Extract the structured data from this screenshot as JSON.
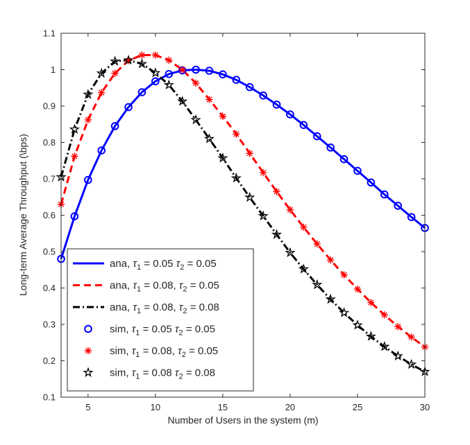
{
  "chart_data": {
    "type": "line",
    "xlabel": "Number of Users in the system (m)",
    "ylabel": "Long-term Average Throughput (\\bps)",
    "xlim": [
      3,
      30
    ],
    "ylim": [
      0.1,
      1.1
    ],
    "xticks": [
      5,
      10,
      15,
      20,
      25,
      30
    ],
    "yticks": [
      0.1,
      0.2,
      0.3,
      0.4,
      0.5,
      0.6,
      0.7,
      0.8,
      0.9,
      1.0,
      1.1
    ],
    "ytick_labels": [
      "0.1",
      "0.2",
      "0.3",
      "0.4",
      "0.5",
      "0.6",
      "0.7",
      "0.8",
      "0.9",
      "1",
      "1.1"
    ],
    "grid": false,
    "legend_position": "bottom-left",
    "x": [
      3,
      4,
      5,
      6,
      7,
      8,
      9,
      10,
      11,
      12,
      13,
      14,
      15,
      16,
      17,
      18,
      19,
      20,
      21,
      22,
      23,
      24,
      25,
      26,
      27,
      28,
      29,
      30
    ],
    "series": [
      {
        "name": "ana, τ1 = 0.05 τ2 = 0.05",
        "legend": {
          "prefix": "ana, ",
          "t1": "0.05",
          "sep": " ",
          "t2": "0.05"
        },
        "kind": "line",
        "color": "#0000FF",
        "dash": "solid",
        "values": [
          0.48,
          0.597,
          0.697,
          0.778,
          0.845,
          0.897,
          0.938,
          0.968,
          0.988,
          0.998,
          1.0,
          0.997,
          0.987,
          0.972,
          0.952,
          0.929,
          0.904,
          0.877,
          0.848,
          0.817,
          0.786,
          0.754,
          0.722,
          0.69,
          0.657,
          0.626,
          0.595,
          0.565
        ]
      },
      {
        "name": "ana, τ1 = 0.08, τ2 = 0.05",
        "legend": {
          "prefix": "ana, ",
          "t1": "0.08",
          "sep": ", ",
          "t2": "0.05"
        },
        "kind": "line",
        "color": "#FF0000",
        "dash": "dashed",
        "values": [
          0.63,
          0.762,
          0.862,
          0.937,
          0.99,
          1.025,
          1.04,
          1.04,
          1.026,
          1.0,
          0.963,
          0.918,
          0.872,
          0.823,
          0.77,
          0.717,
          0.665,
          0.615,
          0.567,
          0.521,
          0.477,
          0.436,
          0.397,
          0.36,
          0.326,
          0.294,
          0.265,
          0.238
        ]
      },
      {
        "name": "ana, τ1 = 0.08, τ2 = 0.08",
        "legend": {
          "prefix": "ana, ",
          "t1": "0.08",
          "sep": ", ",
          "t2": "0.08"
        },
        "kind": "line",
        "color": "#000000",
        "dash": "dashdot",
        "values": [
          0.705,
          0.836,
          0.932,
          0.99,
          1.023,
          1.026,
          1.016,
          0.991,
          0.958,
          0.913,
          0.862,
          0.81,
          0.757,
          0.702,
          0.649,
          0.598,
          0.547,
          0.497,
          0.452,
          0.409,
          0.369,
          0.332,
          0.298,
          0.267,
          0.239,
          0.213,
          0.19,
          0.17
        ]
      },
      {
        "name": "sim, τ1 = 0.05 τ2 = 0.05",
        "legend": {
          "prefix": "sim, ",
          "t1": "0.05",
          "sep": " ",
          "t2": "0.05"
        },
        "kind": "markers",
        "marker": "circle",
        "color": "#0000FF",
        "values": [
          0.48,
          0.597,
          0.697,
          0.778,
          0.845,
          0.897,
          0.938,
          0.968,
          0.988,
          0.998,
          1.0,
          0.997,
          0.987,
          0.972,
          0.952,
          0.929,
          0.904,
          0.877,
          0.848,
          0.817,
          0.786,
          0.754,
          0.722,
          0.69,
          0.657,
          0.626,
          0.595,
          0.565
        ]
      },
      {
        "name": "sim, τ1 = 0.08, τ2 = 0.05",
        "legend": {
          "prefix": "sim, ",
          "t1": "0.08",
          "sep": ", ",
          "t2": "0.05"
        },
        "kind": "markers",
        "marker": "asterisk",
        "color": "#FF0000",
        "values": [
          0.63,
          0.762,
          0.862,
          0.937,
          0.99,
          1.025,
          1.04,
          1.04,
          1.026,
          1.0,
          0.963,
          0.918,
          0.872,
          0.823,
          0.77,
          0.717,
          0.665,
          0.615,
          0.567,
          0.521,
          0.477,
          0.436,
          0.397,
          0.36,
          0.326,
          0.294,
          0.265,
          0.238
        ]
      },
      {
        "name": "sim, τ1 = 0.08 τ2 = 0.08",
        "legend": {
          "prefix": "sim, ",
          "t1": "0.08",
          "sep": " ",
          "t2": "0.08"
        },
        "kind": "markers",
        "marker": "star",
        "color": "#000000",
        "values": [
          0.705,
          0.836,
          0.932,
          0.99,
          1.023,
          1.026,
          1.016,
          0.991,
          0.958,
          0.913,
          0.862,
          0.81,
          0.757,
          0.702,
          0.649,
          0.598,
          0.547,
          0.497,
          0.452,
          0.409,
          0.369,
          0.332,
          0.298,
          0.267,
          0.239,
          0.213,
          0.19,
          0.17
        ]
      }
    ]
  }
}
